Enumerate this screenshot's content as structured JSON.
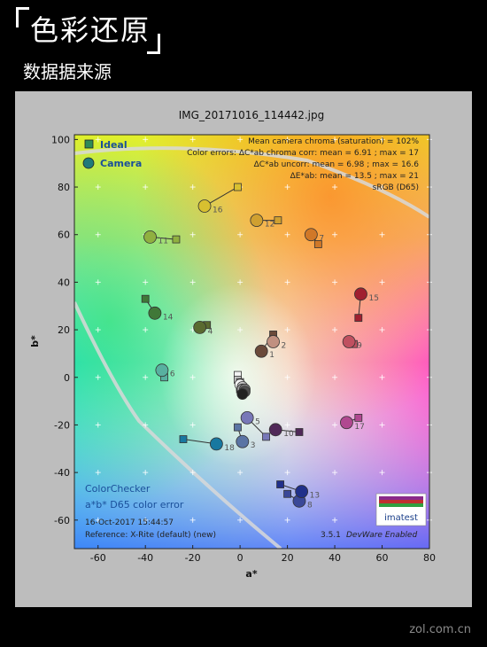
{
  "header": {
    "title": "色彩还原",
    "subtitle": "数据据来源"
  },
  "watermark": "zol.com.cn",
  "chart_data": {
    "type": "scatter",
    "title": "IMG_20171016_114442.jpg",
    "xlabel": "a*",
    "ylabel": "b*",
    "xlim": [
      -70,
      80
    ],
    "ylim": [
      -72,
      102
    ],
    "xticks": [
      -60,
      -40,
      -20,
      0,
      20,
      40,
      60,
      80
    ],
    "yticks": [
      -60,
      -40,
      -20,
      0,
      20,
      40,
      60,
      80,
      100
    ],
    "grid": true,
    "legend": {
      "placement": "top-left",
      "entries": [
        {
          "name": "Ideal",
          "marker": "square"
        },
        {
          "name": "Camera",
          "marker": "circle"
        }
      ]
    },
    "stats": [
      "Mean camera chroma (saturation) = 102%",
      "Color errors: ΔC*ab chroma corr:  mean = 6.91 ;  max = 17",
      "ΔC*ab uncorr:  mean = 6.98 ;  max = 16.6",
      "ΔE*ab:  mean = 13.5 ;  max = 21",
      "sRGB (D65)"
    ],
    "annotations": {
      "chart_name": "ColorChecker",
      "chart_desc": "a*b* D65 color error",
      "date": "16-Oct-2017 15:44:57",
      "reference": "Reference: X-Rite (default) (new)",
      "version": "3.5.1",
      "version_note": "DevWare Enabled",
      "logo": "imatest"
    },
    "patches": [
      {
        "label": "1",
        "ideal": [
          14,
          18
        ],
        "camera": [
          9,
          11
        ],
        "color": "#6b4a3a"
      },
      {
        "label": "2",
        "ideal": [
          14,
          16
        ],
        "camera": [
          14,
          15
        ],
        "color": "#c09080"
      },
      {
        "label": "3",
        "ideal": [
          -1,
          -21
        ],
        "camera": [
          1,
          -27
        ],
        "color": "#5a74a4"
      },
      {
        "label": "4",
        "ideal": [
          -14,
          22
        ],
        "camera": [
          -17,
          21
        ],
        "color": "#5a6a30"
      },
      {
        "label": "5",
        "ideal": [
          11,
          -25
        ],
        "camera": [
          3,
          -17
        ],
        "color": "#7878b8"
      },
      {
        "label": "6",
        "ideal": [
          -32,
          0
        ],
        "camera": [
          -33,
          3
        ],
        "color": "#58b0a0"
      },
      {
        "label": "7",
        "ideal": [
          33,
          56
        ],
        "camera": [
          30,
          60
        ],
        "color": "#d07828"
      },
      {
        "label": "8",
        "ideal": [
          20,
          -49
        ],
        "camera": [
          25,
          -52
        ],
        "color": "#3a4898"
      },
      {
        "label": "9",
        "ideal": [
          48,
          14
        ],
        "camera": [
          46,
          15
        ],
        "color": "#c05060"
      },
      {
        "label": "10",
        "ideal": [
          25,
          -23
        ],
        "camera": [
          15,
          -22
        ],
        "color": "#502858"
      },
      {
        "label": "11",
        "ideal": [
          -27,
          58
        ],
        "camera": [
          -38,
          59
        ],
        "color": "#90b040"
      },
      {
        "label": "12",
        "ideal": [
          16,
          66
        ],
        "camera": [
          7,
          66
        ],
        "color": "#d0a030"
      },
      {
        "label": "13",
        "ideal": [
          17,
          -45
        ],
        "camera": [
          26,
          -48
        ],
        "color": "#20308a"
      },
      {
        "label": "14",
        "ideal": [
          -40,
          33
        ],
        "camera": [
          -36,
          27
        ],
        "color": "#407838"
      },
      {
        "label": "15",
        "ideal": [
          50,
          25
        ],
        "camera": [
          51,
          35
        ],
        "color": "#a02030"
      },
      {
        "label": "16",
        "ideal": [
          -1,
          80
        ],
        "camera": [
          -15,
          72
        ],
        "color": "#d8c030"
      },
      {
        "label": "17",
        "ideal": [
          50,
          -17
        ],
        "camera": [
          45,
          -19
        ],
        "color": "#b04890"
      },
      {
        "label": "18",
        "ideal": [
          -24,
          -26
        ],
        "camera": [
          -10,
          -28
        ],
        "color": "#1878a0"
      }
    ],
    "neutrals": {
      "ideal": [
        [
          -1,
          1
        ],
        [
          -1,
          -1
        ],
        [
          0,
          -2
        ],
        [
          0,
          -3
        ],
        [
          0,
          -4
        ],
        [
          0,
          -5
        ]
      ],
      "camera": [
        [
          0,
          -3
        ],
        [
          1,
          -4
        ],
        [
          1,
          -5
        ],
        [
          2,
          -5
        ],
        [
          2,
          -6
        ],
        [
          1,
          -7
        ]
      ],
      "colors": [
        "#f2f2f2",
        "#c8c8c8",
        "#a0a0a0",
        "#787878",
        "#505050",
        "#222222"
      ]
    }
  }
}
